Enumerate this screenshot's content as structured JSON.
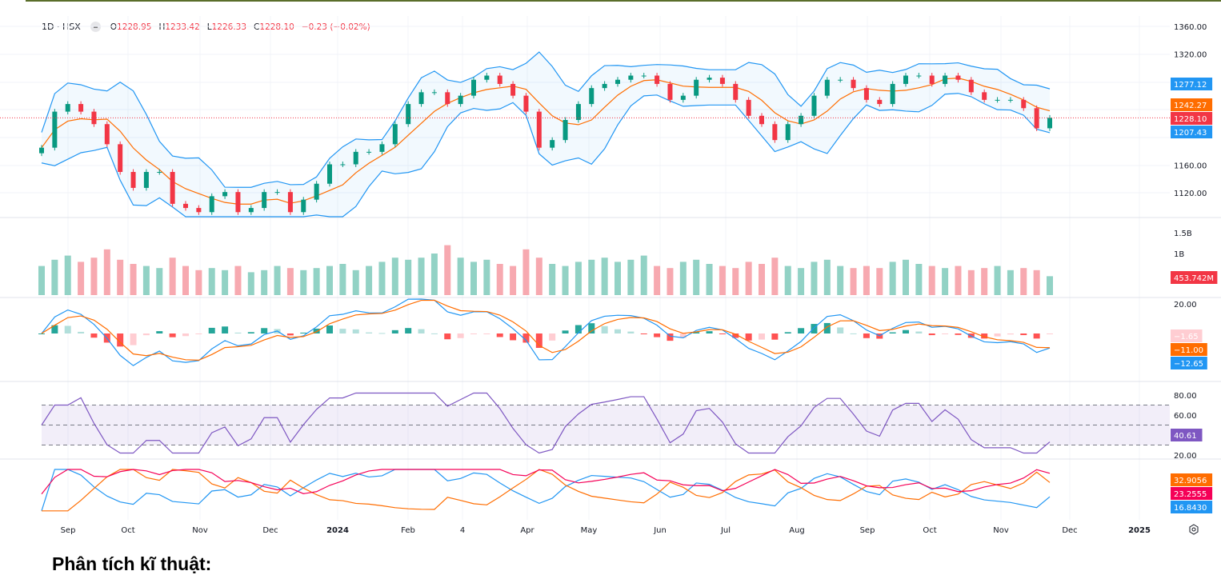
{
  "legend": {
    "symbol": "1D · HSX",
    "open_key": "O",
    "open": "1228.95",
    "high_key": "H",
    "high": "1233.42",
    "low_key": "L",
    "low": "1226.33",
    "close_key": "C",
    "close": "1228.10",
    "change": "−0.23 (−0.02%)"
  },
  "heading": "Phân tích kĩ thuật:",
  "chart_data": {
    "type": "candlestick",
    "price_axis": {
      "ticks": [
        "1360.00",
        "1320.00",
        "1160.00",
        "1120.00"
      ],
      "tick_values": [
        1360,
        1320,
        1160,
        1120
      ],
      "range": [
        1100,
        1370
      ]
    },
    "closes": [
      1185,
      1237,
      1248,
      1237,
      1219,
      1190,
      1150,
      1127,
      1150,
      1150,
      1104,
      1098,
      1092,
      1115,
      1121,
      1092,
      1098,
      1121,
      1121,
      1092,
      1110,
      1133,
      1161,
      1161,
      1179,
      1179,
      1190,
      1219,
      1248,
      1265,
      1265,
      1248,
      1260,
      1283,
      1289,
      1277,
      1260,
      1237,
      1185,
      1196,
      1225,
      1248,
      1271,
      1277,
      1283,
      1289,
      1289,
      1277,
      1254,
      1260,
      1283,
      1286,
      1277,
      1254,
      1231,
      1219,
      1196,
      1219,
      1231,
      1260,
      1283,
      1283,
      1271,
      1254,
      1248,
      1277,
      1289,
      1289,
      1277,
      1289,
      1283,
      1265,
      1254,
      1254,
      1254,
      1242,
      1213,
      1228.1
    ],
    "volumes_millions": [
      700,
      850,
      950,
      800,
      900,
      1100,
      850,
      750,
      700,
      650,
      900,
      700,
      600,
      650,
      600,
      700,
      550,
      600,
      700,
      650,
      600,
      650,
      700,
      750,
      600,
      700,
      800,
      900,
      850,
      900,
      1000,
      1200,
      900,
      800,
      850,
      750,
      700,
      1100,
      900,
      750,
      700,
      800,
      850,
      900,
      800,
      850,
      950,
      700,
      650,
      800,
      850,
      750,
      700,
      650,
      800,
      750,
      900,
      700,
      650,
      800,
      850,
      700,
      650,
      700,
      650,
      800,
      850,
      750,
      700,
      650,
      700,
      600,
      650,
      700,
      600,
      650,
      600,
      454
    ],
    "x_axis": [
      "Sep",
      "Oct",
      "Nov",
      "Dec",
      "2024",
      "Feb",
      "4",
      "Apr",
      "May",
      "Jun",
      "Jul",
      "Aug",
      "Sep",
      "Oct",
      "Nov",
      "Dec",
      "2025"
    ],
    "x_axis_bold": [
      "2024",
      "2025"
    ],
    "bollinger": {
      "upper": "1277.12",
      "basis": "1242.27",
      "lower": "1207.43"
    },
    "last_price": "1228.10",
    "volume": {
      "ticks": [
        "1.5B",
        "1B"
      ],
      "tick_values": [
        1500,
        1000
      ],
      "last": "453.742M"
    },
    "macd": {
      "ticks": [
        "20.00"
      ],
      "histogram": "−1.65",
      "signal": "−11.00",
      "macd": "−12.65"
    },
    "rsi": {
      "ticks": [
        "80.00",
        "60.00",
        "20.00"
      ],
      "tick_values": [
        80,
        60,
        20
      ],
      "value": "40.61",
      "bands": [
        30,
        50,
        70
      ]
    },
    "dmi": {
      "values": [
        "32.9056",
        "23.2555",
        "16.8430"
      ]
    }
  },
  "colors": {
    "up": "#089981",
    "down": "#f23645",
    "bb": "#2196f3",
    "basis": "#ff6d00",
    "rsi": "#7e57c2",
    "dmi_orange": "#ff6d00",
    "dmi_pink": "#f50057",
    "dmi_blue": "#2196f3"
  }
}
